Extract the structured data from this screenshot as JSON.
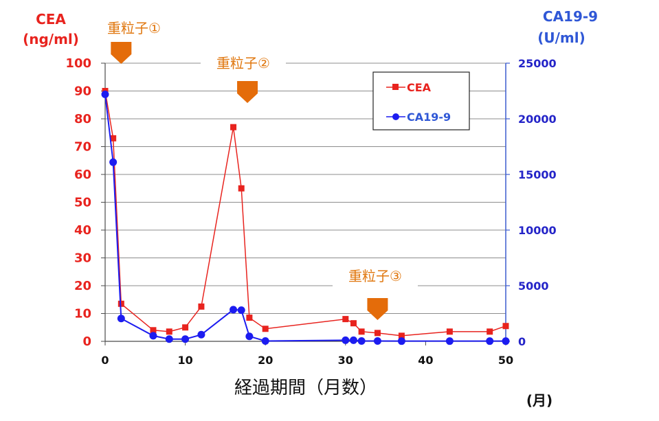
{
  "chart_data": {
    "type": "line",
    "xlabel": "経過期間（月数）",
    "x_unit": "(月)",
    "xlim": [
      0,
      50
    ],
    "x_ticks": [
      0,
      10,
      20,
      30,
      40,
      50
    ],
    "y_left": {
      "title_line1": "CEA",
      "title_line2": "(ng/ml)",
      "ylim": [
        0,
        100
      ],
      "ticks": [
        0,
        10,
        20,
        30,
        40,
        50,
        60,
        70,
        80,
        90,
        100
      ],
      "color": "#e8231e"
    },
    "y_right": {
      "title_line1": "CA19-9",
      "title_line2": "(U/ml)",
      "ylim": [
        0,
        25000
      ],
      "ticks": [
        0,
        5000,
        10000,
        15000,
        20000,
        25000
      ],
      "color": "#2f57d6"
    },
    "grid": true,
    "legend_position": "top-right",
    "series": [
      {
        "name": "CEA",
        "axis": "left",
        "color": "#e8231e",
        "marker": "square",
        "x": [
          0,
          1,
          2,
          6,
          8,
          10,
          12,
          16,
          17,
          18,
          20,
          30,
          31,
          32,
          34,
          37,
          43,
          48,
          50
        ],
        "values": [
          90,
          73,
          13.5,
          4,
          3.5,
          5,
          12.5,
          77,
          55,
          8.5,
          4.5,
          8,
          6.5,
          3.5,
          3,
          2,
          3.5,
          3.5,
          5.5
        ]
      },
      {
        "name": "CA19-9",
        "axis": "right",
        "color": "#1c1cf0",
        "marker": "circle",
        "x": [
          0,
          1,
          2,
          6,
          8,
          10,
          12,
          16,
          17,
          18,
          20,
          30,
          31,
          32,
          34,
          37,
          43,
          48,
          50
        ],
        "values": [
          22200,
          16100,
          2050,
          500,
          200,
          200,
          600,
          2850,
          2800,
          450,
          30,
          100,
          100,
          30,
          30,
          20,
          20,
          20,
          20
        ]
      }
    ],
    "annotations": [
      {
        "label": "重粒子①",
        "x": 2
      },
      {
        "label": "重粒子②",
        "x": 17.5
      },
      {
        "label": "重粒子③",
        "x": 34
      }
    ]
  }
}
